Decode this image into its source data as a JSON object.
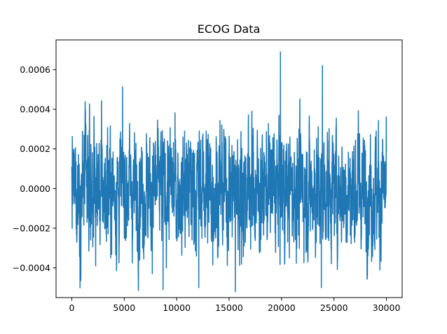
{
  "chart_data": {
    "type": "line",
    "title": "ECOG Data",
    "xlabel": "",
    "ylabel": "",
    "xlim": [
      -1500,
      31500
    ],
    "ylim": [
      -0.00055,
      0.00075
    ],
    "x_ticks": [
      0,
      5000,
      10000,
      15000,
      20000,
      25000,
      30000
    ],
    "x_tick_labels": [
      "0",
      "5000",
      "10000",
      "15000",
      "20000",
      "25000",
      "30000"
    ],
    "y_ticks": [
      -0.0004,
      -0.0002,
      0.0,
      0.0002,
      0.0004,
      0.0006
    ],
    "y_tick_labels": [
      "−0.0004",
      "−0.0002",
      "0.0000",
      "0.0002",
      "0.0004",
      "0.0006"
    ],
    "grid": false,
    "series": [
      {
        "color": "#1f77b4",
        "x_start": 0,
        "x_end": 30000,
        "approx_range": [
          -0.00052,
          0.00069
        ],
        "notable_extremes": [
          {
            "x": 19900,
            "y": 0.00069
          },
          {
            "x": 23900,
            "y": 0.00062
          },
          {
            "x": 15600,
            "y": -0.00052
          },
          {
            "x": 8700,
            "y": -0.00051
          },
          {
            "x": 12100,
            "y": -0.0005
          },
          {
            "x": 23800,
            "y": -0.0005
          }
        ]
      }
    ]
  }
}
